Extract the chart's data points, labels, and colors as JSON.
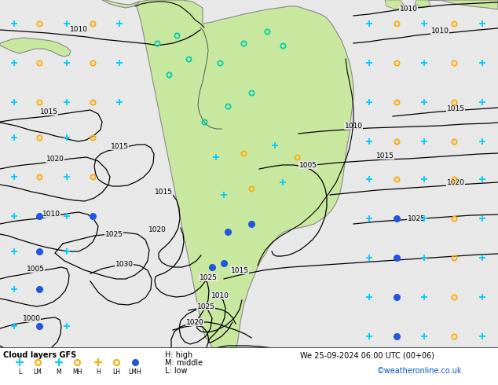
{
  "title": "Cloud layers GFS",
  "date_label": "We 25-09-2024 06:00 UTC (00+06)",
  "copyright": "©weatheronline.co.uk",
  "bg_color": "#e8e8e8",
  "legend_bg": "#e8e8e8",
  "land_color": "#c8e8a0",
  "land_edge": "#888888",
  "contour_color": "#000000",
  "H_label": "H: high",
  "M_label": "M: middle",
  "L_label": "L: low",
  "scatter_cyan_plus": "#00ccff",
  "scatter_orange_circle": "#ffaa00",
  "scatter_teal_circle": "#00ccaa",
  "scatter_blue_dot": "#2255dd"
}
